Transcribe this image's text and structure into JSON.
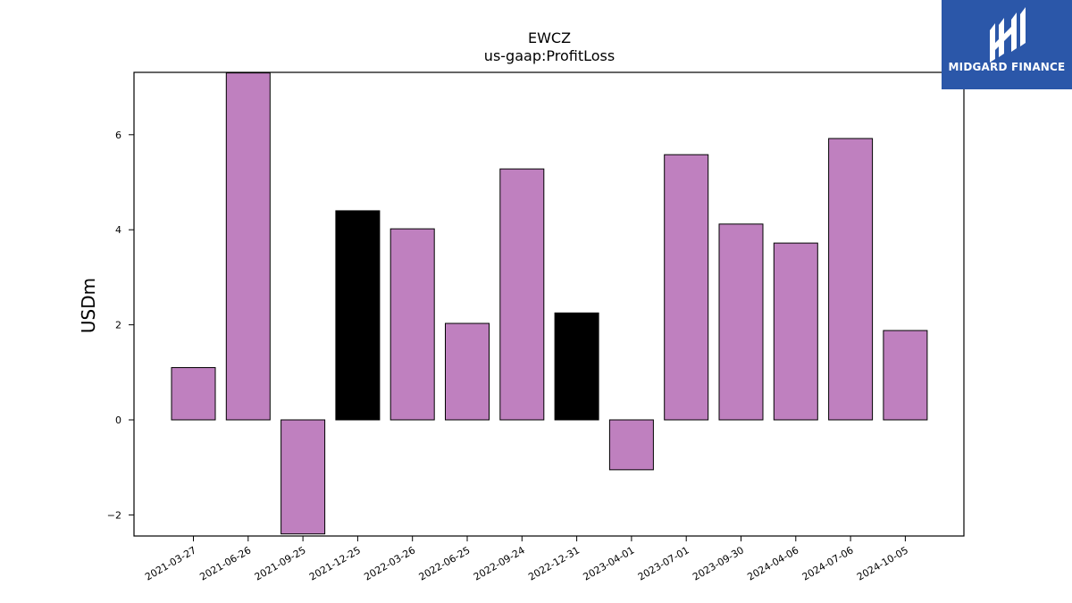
{
  "chart_data": {
    "type": "bar",
    "title": "EWCZ",
    "subtitle": "us-gaap:ProfitLoss",
    "xlabel": "",
    "ylabel": "USDm",
    "ylim": [
      -2.4,
      7.3
    ],
    "yticks": [
      -2,
      0,
      2,
      4,
      6
    ],
    "ytick_labels": [
      "−2",
      "0",
      "2",
      "4",
      "6"
    ],
    "categories": [
      "2021-03-27",
      "2021-06-26",
      "2021-09-25",
      "2021-12-25",
      "2022-03-26",
      "2022-06-25",
      "2022-09-24",
      "2022-12-31",
      "2023-04-01",
      "2023-07-01",
      "2023-09-30",
      "2024-04-06",
      "2024-07-06",
      "2024-10-05"
    ],
    "values": [
      1.1,
      7.3,
      -2.4,
      4.4,
      4.02,
      2.03,
      5.28,
      2.25,
      -1.05,
      5.58,
      4.12,
      3.72,
      5.92,
      1.88
    ],
    "bar_colors": [
      "#bf80bf",
      "#bf80bf",
      "#bf80bf",
      "#000000",
      "#bf80bf",
      "#bf80bf",
      "#bf80bf",
      "#000000",
      "#bf80bf",
      "#bf80bf",
      "#bf80bf",
      "#bf80bf",
      "#bf80bf",
      "#bf80bf"
    ],
    "grid": false,
    "legend": "none"
  },
  "logo": {
    "text": "MIDGARD FINANCE",
    "background": "#2b57a9"
  }
}
